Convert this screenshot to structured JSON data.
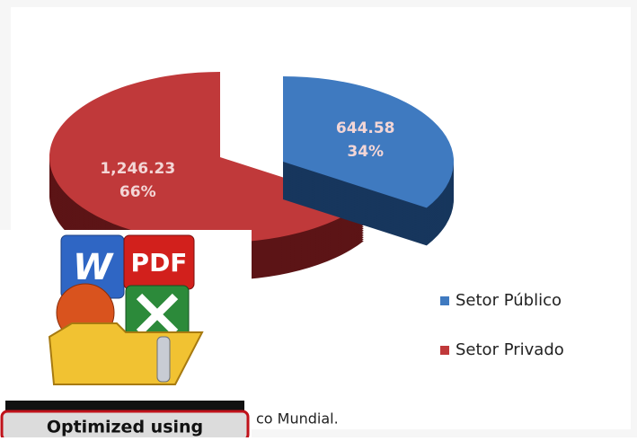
{
  "chart_data": {
    "type": "pie",
    "categories": [
      "Setor Público",
      "Setor Privado"
    ],
    "values": [
      644.58,
      1246.23
    ],
    "value_labels": [
      "644.58",
      "1,246.23"
    ],
    "percent_labels": [
      "34%",
      "66%"
    ],
    "colors": [
      "#3f7ac0",
      "#c0393a"
    ],
    "side_colors": [
      "#17365d",
      "#5c1416"
    ],
    "legend": "right",
    "source_fragment": "co Mundial."
  },
  "overlay": {
    "icon_labels": [
      "W",
      "PDF"
    ],
    "button": "Optimized using"
  }
}
